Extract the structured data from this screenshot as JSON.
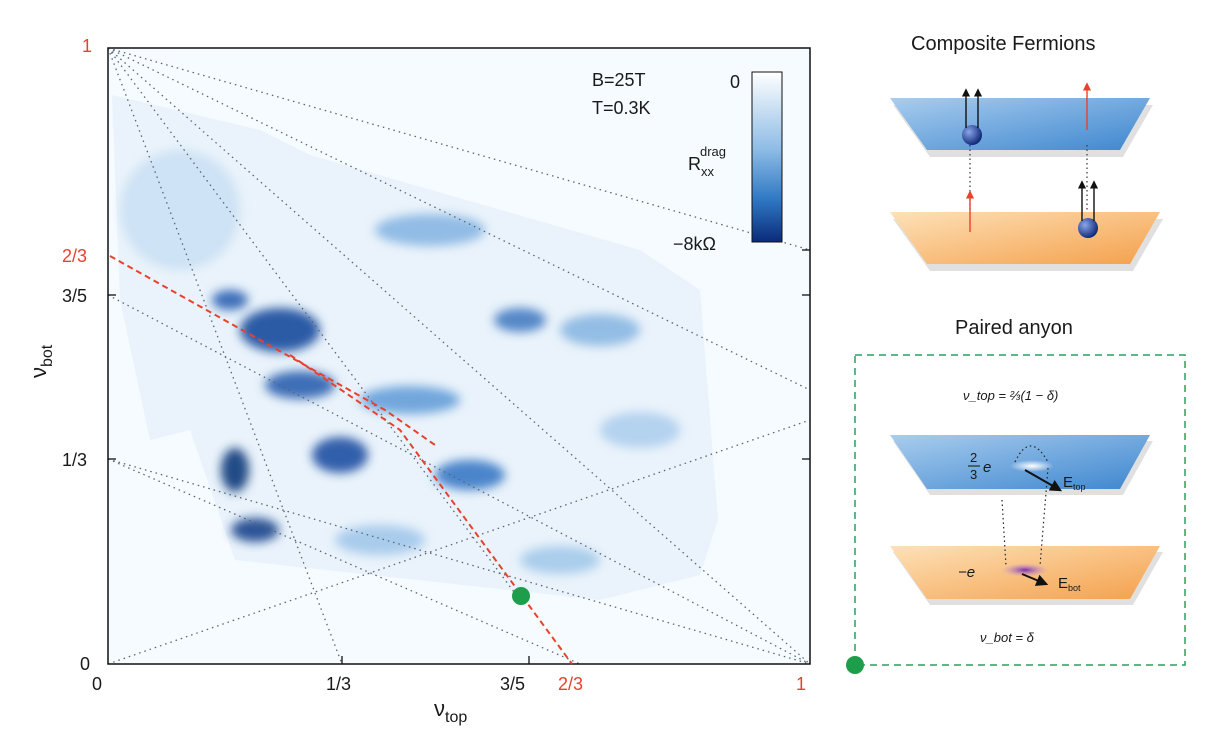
{
  "plot": {
    "xaxis": {
      "label_main": "ν",
      "label_sub": "top",
      "ticks": [
        "0",
        "1/3",
        "3/5"
      ],
      "red_ticks": [
        "2/3",
        "1"
      ]
    },
    "yaxis": {
      "label_main": "ν",
      "label_sub": "bot",
      "ticks": [
        "0",
        "1/3",
        "3/5"
      ],
      "red_ticks": [
        "2/3",
        "1"
      ]
    },
    "conditions": {
      "field": "B=25T",
      "temperature": "T=0.3K"
    },
    "colorbar": {
      "top": "0",
      "bottom": "−8kΩ",
      "label_main": "R",
      "label_sub": "xx",
      "label_sup": "drag",
      "color_low": "#0b2a7a",
      "color_high": "#ffffff"
    }
  },
  "chart_data": {
    "type": "heatmap",
    "xlabel": "ν_top",
    "ylabel": "ν_bot",
    "xlim": [
      0,
      1
    ],
    "ylim": [
      0,
      1
    ],
    "zlabel": "R_xx^drag",
    "zlim": [
      -8,
      0
    ],
    "zunit": "kΩ",
    "red_dashed_lines": [
      {
        "from": [
          0,
          0.6667
        ],
        "to": [
          0.4,
          0.36
        ]
      },
      {
        "from": [
          0.4,
          0.36
        ],
        "to": [
          0.6667,
          0
        ]
      }
    ],
    "marker": {
      "x": 0.6,
      "y": 0.1,
      "color": "#1e9e4a"
    }
  },
  "panels": {
    "composite_fermions": {
      "title": "Composite Fermions"
    },
    "paired_anyon": {
      "title": "Paired anyon",
      "nu_top_eq": "ν_top = ⅔(1 − δ)",
      "top_charge_frac": "2",
      "top_charge_den": "3",
      "top_charge_e": "e",
      "bot_charge": "−e",
      "e_top_main": "E",
      "e_top_sub": "top",
      "e_bot_main": "E",
      "e_bot_sub": "bot",
      "nu_bot_eq": "ν_bot = δ"
    }
  }
}
